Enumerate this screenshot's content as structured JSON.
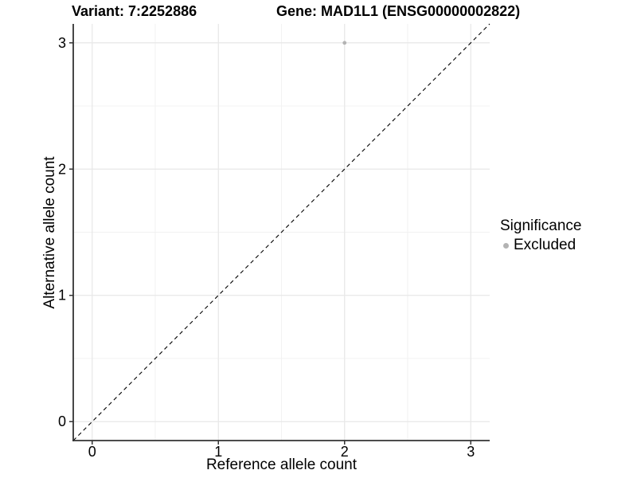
{
  "chart_data": {
    "type": "scatter",
    "titles": {
      "variant": "Variant: 7:2252886",
      "gene": "Gene: MAD1L1 (ENSG00000002822)"
    },
    "xlabel": "Reference allele count",
    "ylabel": "Alternative allele count",
    "xlim": [
      -0.15,
      3.15
    ],
    "ylim": [
      -0.15,
      3.15
    ],
    "x_ticks": [
      0,
      1,
      2,
      3
    ],
    "y_ticks": [
      0,
      1,
      2,
      3
    ],
    "grid": {
      "major": true,
      "minor": true
    },
    "identity_line": {
      "style": "dashed",
      "color": "#000000",
      "from": [
        -0.15,
        -0.15
      ],
      "to": [
        3.15,
        3.15
      ]
    },
    "series": [
      {
        "name": "Excluded",
        "color": "#b3b3b3",
        "points": [
          {
            "x": 2,
            "y": 3
          }
        ]
      }
    ],
    "legend": {
      "title": "Significance",
      "position": "right",
      "items": [
        {
          "label": "Excluded",
          "color": "#b3b3b3"
        }
      ]
    },
    "colors": {
      "axis": "#333333",
      "text": "#000000",
      "grid_major": "#e7e7e7",
      "grid_minor": "#f1f1f1",
      "background": "#ffffff"
    }
  }
}
